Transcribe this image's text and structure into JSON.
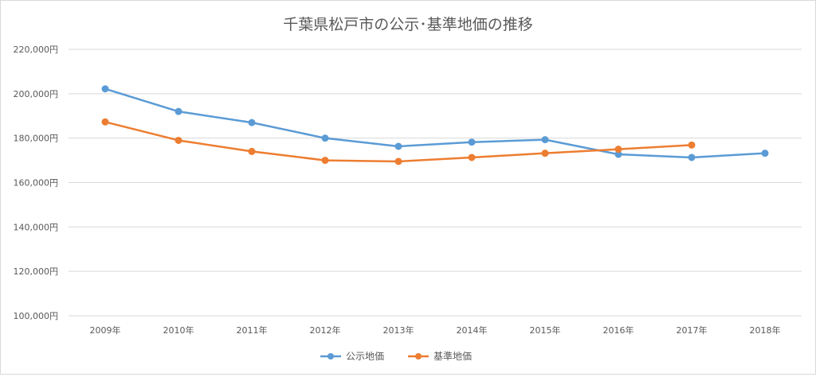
{
  "chart_data": {
    "type": "line",
    "title": "千葉県松戸市の公示･基準地価の推移",
    "xlabel": "",
    "ylabel": "",
    "categories": [
      "2009年",
      "2010年",
      "2011年",
      "2012年",
      "2013年",
      "2014年",
      "2015年",
      "2016年",
      "2017年",
      "2018年"
    ],
    "ylim": [
      100000,
      220000
    ],
    "yticks": [
      100000,
      120000,
      140000,
      160000,
      180000,
      200000,
      220000
    ],
    "ytick_labels": [
      "100,000円",
      "120,000円",
      "140,000円",
      "160,000円",
      "180,000円",
      "200,000円",
      "220,000円"
    ],
    "grid": true,
    "legend": "bottom",
    "series": [
      {
        "name": "公示地価",
        "color": "#5b9bd5",
        "values": [
          202200,
          192000,
          187000,
          180000,
          176300,
          178200,
          179300,
          172700,
          171300,
          173200
        ]
      },
      {
        "name": "基準地価",
        "color": "#ed7d31",
        "values": [
          187300,
          179000,
          174000,
          170000,
          169500,
          171300,
          173200,
          175000,
          176900,
          null
        ]
      }
    ]
  }
}
